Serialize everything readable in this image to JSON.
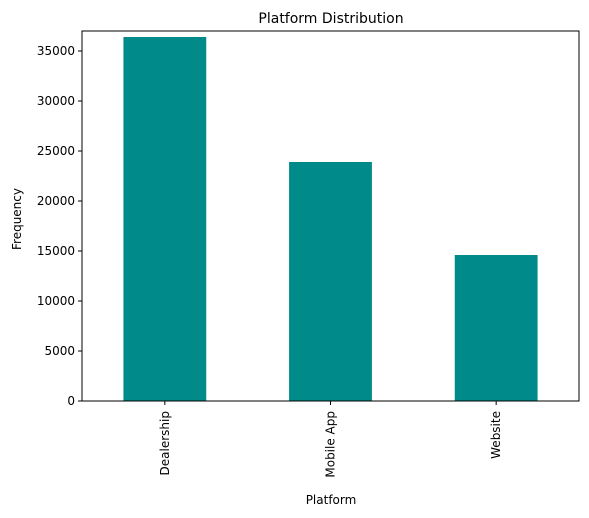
{
  "chart_data": {
    "type": "bar",
    "title": "Platform Distribution",
    "xlabel": "Platform",
    "ylabel": "Frequency",
    "categories": [
      "Dealership",
      "Mobile App",
      "Website"
    ],
    "values": [
      36400,
      23900,
      14600
    ],
    "ylim": [
      0,
      37000
    ],
    "yticks": [
      0,
      5000,
      10000,
      15000,
      20000,
      25000,
      30000,
      35000
    ],
    "bar_color": "#008b8a",
    "grid": false,
    "legend": "none"
  }
}
